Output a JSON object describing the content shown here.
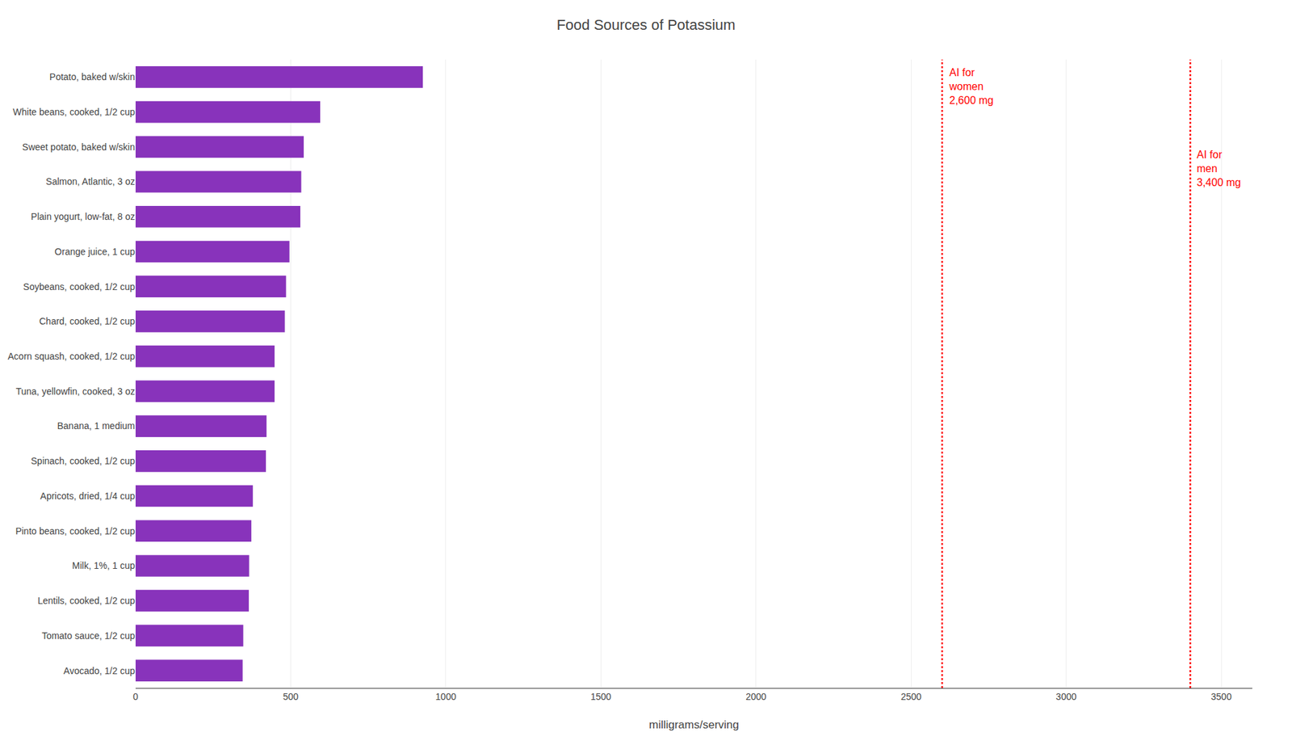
{
  "chart_data": {
    "type": "bar",
    "orientation": "horizontal",
    "title": "Food Sources of Potassium",
    "xlabel": "milligrams/serving",
    "categories": [
      "Potato, baked w/skin",
      "White beans, cooked, 1/2 cup",
      "Sweet potato, baked w/skin",
      "Salmon, Atlantic, 3 oz",
      "Plain yogurt, low-fat, 8 oz",
      "Orange juice, 1 cup",
      "Soybeans, cooked, 1/2 cup",
      "Chard, cooked, 1/2 cup",
      "Acorn squash, cooked, 1/2 cup",
      "Tuna, yellowfin, cooked, 3 oz",
      "Banana, 1 medium",
      "Spinach, cooked, 1/2 cup",
      "Apricots, dried, 1/4 cup",
      "Pinto beans, cooked, 1/2 cup",
      "Milk, 1%, 1 cup",
      "Lentils, cooked, 1/2 cup",
      "Tomato sauce, 1/2 cup",
      "Avocado, 1/2 cup"
    ],
    "values": [
      926,
      595,
      542,
      534,
      531,
      496,
      485,
      481,
      448,
      448,
      422,
      420,
      378,
      373,
      366,
      365,
      347,
      345
    ],
    "color": "#8833BB",
    "xlim": [
      0,
      3600
    ],
    "xticks": [
      0,
      500,
      1000,
      1500,
      2000,
      2500,
      3000,
      3500
    ],
    "grid": true,
    "reference_lines": [
      {
        "x": 2600,
        "label": "AI for\nwomen\n2,600 mg",
        "color": "red",
        "line_style": "dotted"
      },
      {
        "x": 3400,
        "label": "AI for\nmen\n3,400 mg",
        "color": "red",
        "line_style": "dotted"
      }
    ]
  }
}
